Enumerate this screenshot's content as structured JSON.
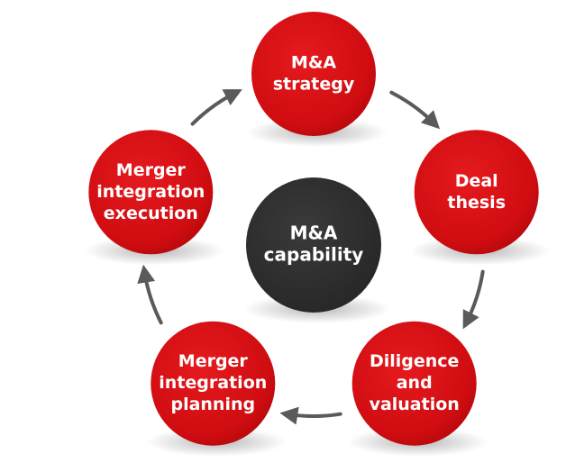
{
  "center": {
    "lines": [
      "M&A",
      "capability"
    ],
    "color": "#2e2e2e"
  },
  "nodes": [
    {
      "id": "ma-strategy",
      "lines": [
        "M&A",
        "strategy"
      ]
    },
    {
      "id": "deal-thesis",
      "lines": [
        "Deal",
        "thesis"
      ]
    },
    {
      "id": "diligence-and-valuation",
      "lines": [
        "Diligence",
        "and",
        "valuation"
      ]
    },
    {
      "id": "merger-integration-planning",
      "lines": [
        "Merger",
        "integration",
        "planning"
      ]
    },
    {
      "id": "merger-integration-execution",
      "lines": [
        "Merger",
        "integration",
        "execution"
      ]
    }
  ],
  "colors": {
    "node_fill": "#d50e12",
    "node_fill_dark": "#a8070b",
    "node_text": "#ffffff",
    "center_text": "#ffffff",
    "arrow": "#5a5a5a"
  },
  "icons": {
    "cycle_arrow": "arrow-right-curved-icon"
  }
}
